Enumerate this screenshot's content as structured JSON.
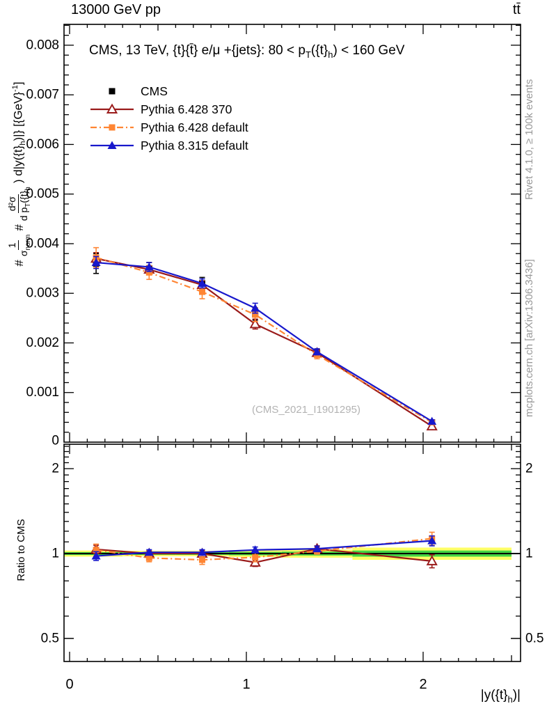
{
  "header": {
    "left": "13000 GeV pp",
    "right": "tt̄"
  },
  "right_margin": {
    "rivet": "Rivet 4.1.0, ≥ 100k events",
    "mcplots": "mcplots.cern.ch [arXiv:1306.3436]"
  },
  "watermark": "(CMS_2021_I1901295)",
  "main_title": {
    "part1": "CMS, 13 TeV, {t}{t̄} e/μ +{jets}: 80 <  p",
    "sub1": "T",
    "part2": "({t}",
    "sub2": "h",
    "part3": ") < 160 GeV"
  },
  "main_ylabel": {
    "hash1": "#",
    "frac1_num": "1",
    "frac1_den_main": "σ",
    "frac1_den_sub": "norm",
    "hash2": "#",
    "frac2_num": "d²σ",
    "frac2_den_main": "d p",
    "frac2_den_sub1": "T",
    "frac2_den_mid": "({t}",
    "frac2_den_sub2": "h",
    "tail1": ") d|y({t}",
    "tail_sub": "h",
    "tail2": ")|} [{GeV}",
    "tail_sup": "-1",
    "tail3": "]"
  },
  "xlabel": {
    "part1": "|y({t}",
    "sub1": "h",
    "part2": ")|"
  },
  "ratio_ylabel": "Ratio to CMS",
  "colors": {
    "cms": "#000000",
    "pythia6_370": "#9a1a1a",
    "pythia6_default": "#ff8533",
    "pythia8_default": "#1818cc",
    "band_yellow": "#ffff66",
    "band_green": "#44d444",
    "gray_text": "#999999",
    "watermark": "#b3b3b3"
  },
  "chart_data": [
    {
      "type": "line",
      "panel": "main",
      "title": "CMS, 13 TeV, {t}{t̄} e/μ +{jets}: 80 < p_T({t}_h) < 160 GeV",
      "xlabel": "|y({t}_h)|",
      "ylabel": "#1/σ_norm #d²σ/(d p_T({t}_h) d|y({t}_h)|) [{GeV}^-1]",
      "xlim": [
        0,
        2.55
      ],
      "ylim": [
        0,
        0.00842
      ],
      "xticks": [
        0,
        1,
        2
      ],
      "yticks": [
        0,
        0.001,
        0.002,
        0.003,
        0.004,
        0.005,
        0.006,
        0.007,
        0.008
      ],
      "x": [
        0.15,
        0.45,
        0.75,
        1.05,
        1.4,
        2.05
      ],
      "series": [
        {
          "name": "CMS",
          "color": "#000000",
          "marker": "square",
          "open": false,
          "line": "none",
          "values": [
            0.0036,
            0.0035,
            0.0032,
            0.00258,
            0.0018,
            0.0004
          ],
          "yerr": [
            0.0002,
            0.00012,
            0.00012,
            0.00012,
            8e-05,
            4e-05
          ]
        },
        {
          "name": "Pythia 6.428 370",
          "color": "#9a1a1a",
          "marker": "triangle",
          "open": true,
          "line": "solid",
          "values": [
            0.0037,
            0.00348,
            0.00317,
            0.00238,
            0.0018,
            0.00032
          ],
          "yerr": [
            0.00012,
            8e-05,
            8e-05,
            0.0001,
            6e-05,
            3e-05
          ]
        },
        {
          "name": "Pythia 6.428 default",
          "color": "#ff8533",
          "marker": "square",
          "open": false,
          "line": "dashdot",
          "values": [
            0.00372,
            0.00342,
            0.00303,
            0.00257,
            0.00176,
            0.0004
          ],
          "yerr": [
            0.0002,
            0.00014,
            0.00014,
            0.00014,
            8e-05,
            5e-05
          ]
        },
        {
          "name": "Pythia 8.315 default",
          "color": "#1818cc",
          "marker": "triangle",
          "open": false,
          "line": "solid",
          "values": [
            0.00362,
            0.00353,
            0.0032,
            0.0027,
            0.00182,
            0.00042
          ],
          "yerr": [
            0.00012,
            9e-05,
            9e-05,
            0.0001,
            6e-05,
            3e-05
          ]
        }
      ]
    },
    {
      "type": "line",
      "panel": "ratio",
      "ylabel": "Ratio to CMS",
      "yscale": "log",
      "xlim": [
        0,
        2.55
      ],
      "ylim": [
        0.414,
        2.44
      ],
      "yticks": [
        0.5,
        1,
        2
      ],
      "x": [
        0.15,
        0.45,
        0.75,
        1.05,
        1.4,
        2.05
      ],
      "band": {
        "bin_edges": [
          0,
          0.3,
          0.6,
          0.9,
          1.2,
          1.6,
          2.5
        ],
        "yellow_halfwidth": [
          0.025,
          0.022,
          0.022,
          0.028,
          0.033,
          0.05
        ],
        "green_halfwidth": [
          0.012,
          0.011,
          0.011,
          0.014,
          0.016,
          0.025
        ]
      },
      "series": [
        {
          "name": "Pythia 6.428 370",
          "color": "#9a1a1a",
          "marker": "triangle",
          "open": true,
          "line": "solid",
          "values": [
            1.035,
            1.0,
            1.0,
            0.93,
            1.04,
            0.94
          ],
          "yerr": [
            0.035,
            0.022,
            0.025,
            0.03,
            0.025,
            0.05
          ]
        },
        {
          "name": "Pythia 6.428 default",
          "color": "#ff8533",
          "marker": "square",
          "open": false,
          "line": "dashdot",
          "values": [
            1.03,
            0.965,
            0.95,
            0.97,
            1.02,
            1.13
          ],
          "yerr": [
            0.05,
            0.03,
            0.035,
            0.035,
            0.025,
            0.06
          ]
        },
        {
          "name": "Pythia 8.315 default",
          "color": "#1818cc",
          "marker": "triangle",
          "open": false,
          "line": "solid",
          "values": [
            0.98,
            1.01,
            1.01,
            1.03,
            1.04,
            1.11
          ],
          "yerr": [
            0.035,
            0.022,
            0.022,
            0.025,
            0.022,
            0.045
          ]
        }
      ]
    }
  ]
}
